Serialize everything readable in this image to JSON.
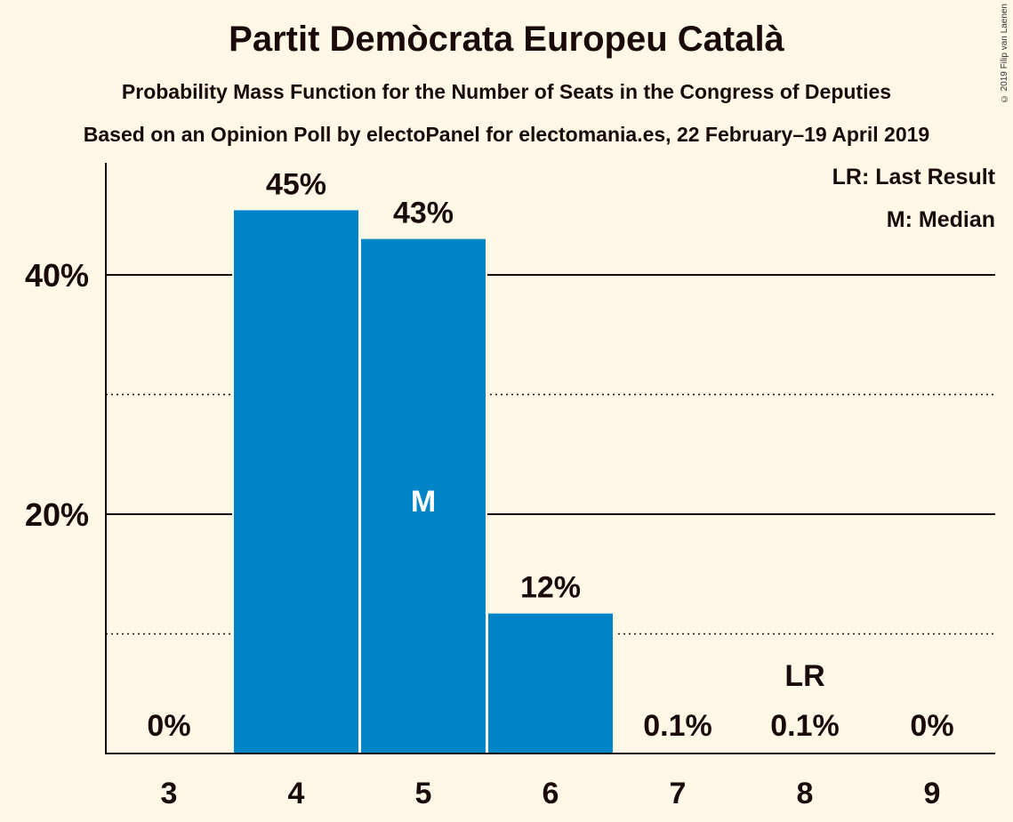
{
  "title": "Partit Demòcrata Europeu Català",
  "subtitle1": "Probability Mass Function for the Number of Seats in the Congress of Deputies",
  "subtitle2": "Based on an Opinion Poll by electoPanel for electomania.es, 22 February–19 April 2019",
  "copyright": "© 2019 Filip van Laenen",
  "legend": {
    "last_result": "LR: Last Result",
    "median": "M: Median"
  },
  "colors": {
    "bar": "#0084C8",
    "background": "#FFF8E6",
    "text": "#1a0a0a"
  },
  "chart_data": {
    "type": "bar",
    "categories": [
      "3",
      "4",
      "5",
      "6",
      "7",
      "8",
      "9"
    ],
    "values": [
      0,
      45.4,
      43.0,
      11.7,
      0.1,
      0.1,
      0
    ],
    "labels": [
      "0%",
      "45%",
      "43%",
      "12%",
      "0.1%",
      "0.1%",
      "0%"
    ],
    "ylim": [
      0,
      49
    ],
    "yticks_major": [
      20,
      40
    ],
    "ytick_labels": [
      "20%",
      "40%"
    ],
    "yticks_minor": [
      10,
      30
    ],
    "median_index": 2,
    "median_label": "M",
    "last_result_index": 5,
    "last_result_label": "LR",
    "grid": true
  }
}
